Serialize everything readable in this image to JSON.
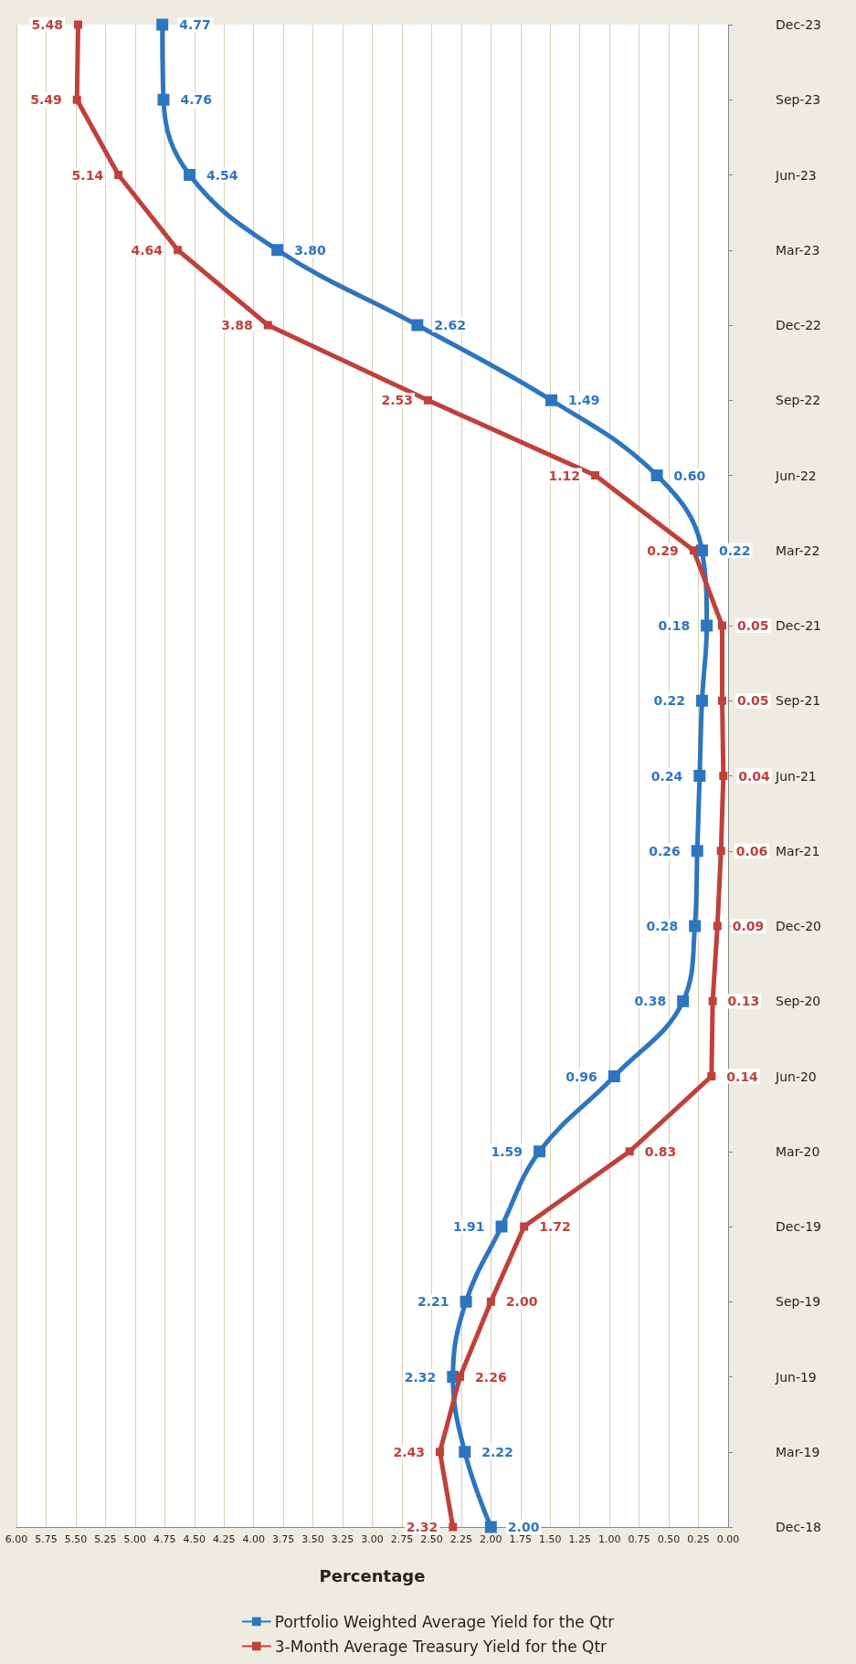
{
  "chart_data": {
    "type": "line",
    "orientation": "horizontal",
    "xlabel": "Percentage",
    "categories": [
      "Dec-23",
      "Sep-23",
      "Jun-23",
      "Mar-23",
      "Dec-22",
      "Sep-22",
      "Jun-22",
      "Mar-22",
      "Dec-21",
      "Sep-21",
      "Jun-21",
      "Mar-21",
      "Dec-20",
      "Sep-20",
      "Jun-20",
      "Mar-20",
      "Dec-19",
      "Sep-19",
      "Jun-19",
      "Mar-19",
      "Dec-18"
    ],
    "series": [
      {
        "name": "Portfolio Weighted Average Yield for the Qtr",
        "color": "#2e75c0",
        "values": [
          4.77,
          4.76,
          4.54,
          3.8,
          2.62,
          1.49,
          0.6,
          0.22,
          0.18,
          0.22,
          0.24,
          0.26,
          0.28,
          0.38,
          0.96,
          1.59,
          1.91,
          2.21,
          2.32,
          2.22,
          2.0
        ],
        "value_labels": [
          "4.77",
          "4.76",
          "4.54",
          "3.80",
          "2.62",
          "1.49",
          "0.60",
          "0.22",
          "0.18",
          "0.22",
          "0.24",
          "0.26",
          "0.28",
          "0.38",
          "0.96",
          "1.59",
          "1.91",
          "2.21",
          "2.32",
          "2.22",
          "2.00"
        ]
      },
      {
        "name": "3-Month Average Treasury Yield for the Qtr",
        "color": "#c0403a",
        "values": [
          5.48,
          5.49,
          5.14,
          4.64,
          3.88,
          2.53,
          1.12,
          0.29,
          0.05,
          0.05,
          0.04,
          0.06,
          0.09,
          0.13,
          0.14,
          0.83,
          1.72,
          2.0,
          2.26,
          2.43,
          2.32
        ],
        "value_labels": [
          "5.48",
          "5.49",
          "5.14",
          "4.64",
          "3.88",
          "2.53",
          "1.12",
          "0.29",
          "0.05",
          "0.05",
          "0.04",
          "0.06",
          "0.09",
          "0.13",
          "0.14",
          "0.83",
          "1.72",
          "2.00",
          "2.26",
          "2.43",
          "2.32"
        ]
      }
    ],
    "xlim": [
      6,
      0
    ],
    "xticks": [
      {
        "value": 0,
        "label": "0.00"
      },
      {
        "value": 0.25,
        "label": "0.25"
      },
      {
        "value": 0.5,
        "label": "0.50"
      },
      {
        "value": 0.75,
        "label": "0.75"
      },
      {
        "value": 1,
        "label": "1.00"
      },
      {
        "value": 1.25,
        "label": "1.25"
      },
      {
        "value": 1.5,
        "label": "1.50"
      },
      {
        "value": 1.75,
        "label": "1.75"
      },
      {
        "value": 2,
        "label": "2.00"
      },
      {
        "value": 2.25,
        "label": "2.25"
      },
      {
        "value": 2.5,
        "label": "2.50"
      },
      {
        "value": 2.75,
        "label": "2.75"
      },
      {
        "value": 3,
        "label": "3.00"
      },
      {
        "value": 3.25,
        "label": "3.25"
      },
      {
        "value": 3.5,
        "label": "3.50"
      },
      {
        "value": 3.75,
        "label": "3.75"
      },
      {
        "value": 4,
        "label": "4.00"
      },
      {
        "value": 4.25,
        "label": "4.25"
      },
      {
        "value": 4.5,
        "label": "4.50"
      },
      {
        "value": 4.75,
        "label": "4.75"
      },
      {
        "value": 5,
        "label": "5.00"
      },
      {
        "value": 5.25,
        "label": "5.25"
      },
      {
        "value": 5.5,
        "label": "5.50"
      },
      {
        "value": 5.75,
        "label": "5.75"
      },
      {
        "value": 6,
        "label": "6.00"
      }
    ],
    "grid": "x",
    "legend": "bottom",
    "marker": "square",
    "line_style": "solid"
  }
}
